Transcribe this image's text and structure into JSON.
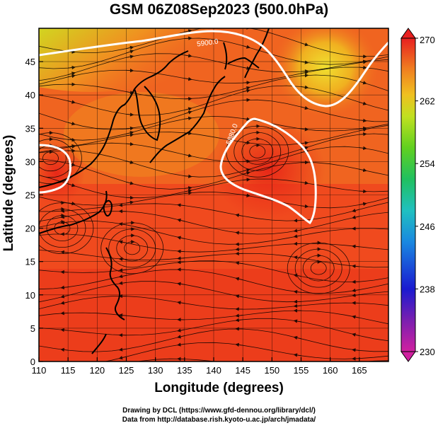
{
  "title": "GSM 06Z08Sep2023 (500.0hPa)",
  "axes": {
    "xlabel": "Longitude (degrees)",
    "ylabel": "Latitude  (degrees)",
    "xlim": [
      110,
      170
    ],
    "ylim": [
      0,
      50
    ],
    "xticks": [
      110,
      115,
      120,
      125,
      130,
      135,
      140,
      145,
      150,
      155,
      160,
      165
    ],
    "yticks": [
      0,
      5,
      10,
      15,
      20,
      25,
      30,
      35,
      40,
      45
    ]
  },
  "colorbar": {
    "min": 230,
    "max": 270,
    "ticks": [
      230,
      238,
      246,
      254,
      262,
      270
    ],
    "colors": [
      "#d020a0",
      "#7a1fb0",
      "#1a1ad0",
      "#1a88e0",
      "#20c0c0",
      "#20c060",
      "#60d020",
      "#c0e020",
      "#f0c020",
      "#f08020",
      "#f04020",
      "#e02020"
    ]
  },
  "contour_labels": [
    {
      "text": "5900.0",
      "lon": 139,
      "lat": 47.5
    },
    {
      "text": "5880.0",
      "lon": 143.5,
      "lat": 34
    }
  ],
  "vortices": [
    {
      "lon": 147.5,
      "lat": 31.5
    },
    {
      "lon": 112,
      "lat": 30.5
    },
    {
      "lon": 126,
      "lat": 17
    },
    {
      "lon": 158,
      "lat": 14
    },
    {
      "lon": 114,
      "lat": 20
    }
  ],
  "credits": {
    "line1": "Drawing by DCL (https://www.gfd-dennou.org/library/dcl/)",
    "line2": "Data from http://database.rish.kyoto-u.ac.jp/arch/jmadata/"
  }
}
